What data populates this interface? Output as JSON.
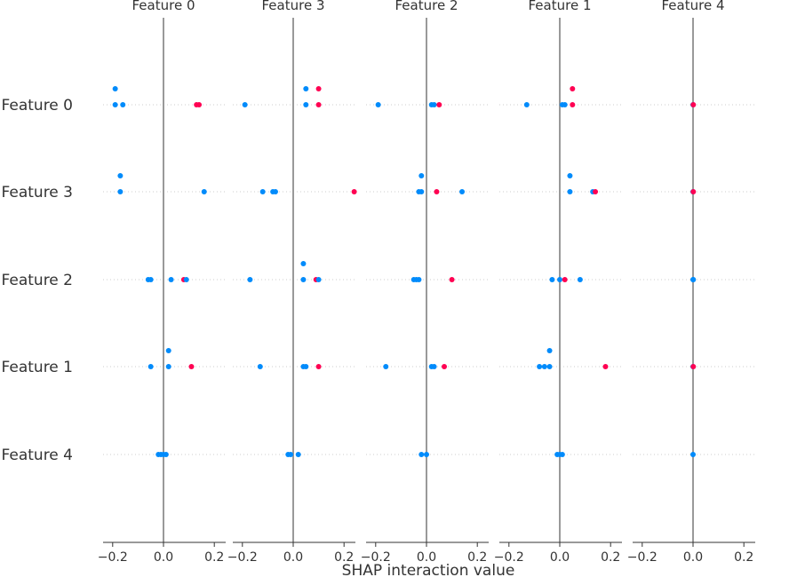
{
  "chart_data": {
    "type": "scatter",
    "title": "",
    "xlabel": "SHAP interaction value",
    "ylabel": "",
    "xlim": [
      -0.24,
      0.24
    ],
    "x_ticks": [
      "−0.2",
      "0.0",
      "0.2"
    ],
    "panel_titles": [
      "Feature 0",
      "Feature 3",
      "Feature 2",
      "Feature 1",
      "Feature 4"
    ],
    "row_labels": [
      "Feature 0",
      "Feature 3",
      "Feature 2",
      "Feature 1",
      "Feature 4"
    ],
    "color_low": "#008bfb",
    "color_high": "#ff0052",
    "grid": false,
    "panels": [
      {
        "rows": [
          [
            [
              -0.19,
              1,
              0
            ],
            [
              -0.19,
              0,
              0
            ],
            [
              -0.16,
              0,
              0
            ],
            [
              0.13,
              0,
              1
            ],
            [
              0.14,
              0,
              1
            ]
          ],
          [
            [
              -0.17,
              1,
              0
            ],
            [
              -0.17,
              0,
              0
            ],
            [
              0.16,
              0,
              0
            ]
          ],
          [
            [
              -0.06,
              0,
              0
            ],
            [
              -0.05,
              0,
              0
            ],
            [
              0.03,
              0,
              0
            ],
            [
              0.08,
              0,
              1
            ],
            [
              0.09,
              0,
              0
            ]
          ],
          [
            [
              0.02,
              1,
              0
            ],
            [
              -0.05,
              0,
              0
            ],
            [
              0.02,
              0,
              0
            ],
            [
              0.11,
              0,
              1
            ]
          ],
          [
            [
              -0.02,
              0,
              0
            ],
            [
              -0.01,
              0,
              0
            ],
            [
              0.0,
              0,
              0
            ],
            [
              0.01,
              0,
              0
            ]
          ]
        ]
      },
      {
        "rows": [
          [
            [
              0.05,
              1,
              0
            ],
            [
              0.1,
              1,
              1
            ],
            [
              -0.19,
              0,
              0
            ],
            [
              0.05,
              0,
              0
            ],
            [
              0.1,
              0,
              1
            ]
          ],
          [
            [
              -0.12,
              0,
              0
            ],
            [
              -0.08,
              0,
              0
            ],
            [
              -0.07,
              0,
              0
            ],
            [
              0.24,
              0,
              1
            ]
          ],
          [
            [
              0.04,
              1,
              0
            ],
            [
              -0.17,
              0,
              0
            ],
            [
              0.04,
              0,
              0
            ],
            [
              0.09,
              0,
              1
            ],
            [
              0.1,
              0,
              0
            ]
          ],
          [
            [
              -0.13,
              0,
              0
            ],
            [
              0.04,
              0,
              0
            ],
            [
              0.05,
              0,
              0
            ],
            [
              0.1,
              0,
              1
            ]
          ],
          [
            [
              -0.02,
              0,
              0
            ],
            [
              -0.01,
              0,
              0
            ],
            [
              0.02,
              0,
              0
            ]
          ]
        ]
      },
      {
        "rows": [
          [
            [
              -0.19,
              0,
              0
            ],
            [
              0.02,
              0,
              0
            ],
            [
              0.03,
              0,
              0
            ],
            [
              0.05,
              0,
              1
            ]
          ],
          [
            [
              -0.02,
              1,
              0
            ],
            [
              -0.03,
              0,
              0
            ],
            [
              -0.02,
              0,
              0
            ],
            [
              0.04,
              0,
              1
            ],
            [
              0.14,
              0,
              0
            ]
          ],
          [
            [
              -0.05,
              0,
              0
            ],
            [
              -0.04,
              0,
              0
            ],
            [
              -0.03,
              0,
              0
            ],
            [
              0.1,
              0,
              1
            ]
          ],
          [
            [
              -0.16,
              0,
              0
            ],
            [
              0.02,
              0,
              0
            ],
            [
              0.03,
              0,
              0
            ],
            [
              0.07,
              0,
              1
            ]
          ],
          [
            [
              -0.02,
              0,
              0
            ],
            [
              0.0,
              0,
              0
            ]
          ]
        ]
      },
      {
        "rows": [
          [
            [
              0.05,
              1,
              1
            ],
            [
              -0.13,
              0,
              0
            ],
            [
              0.01,
              0,
              0
            ],
            [
              0.02,
              0,
              0
            ],
            [
              0.05,
              0,
              1
            ]
          ],
          [
            [
              0.04,
              1,
              0
            ],
            [
              0.04,
              0,
              0
            ],
            [
              0.13,
              0,
              0
            ],
            [
              0.14,
              0,
              1
            ]
          ],
          [
            [
              -0.03,
              0,
              0
            ],
            [
              0.0,
              0,
              0
            ],
            [
              0.02,
              0,
              1
            ],
            [
              0.08,
              0,
              0
            ]
          ],
          [
            [
              -0.04,
              1,
              0
            ],
            [
              -0.08,
              0,
              0
            ],
            [
              -0.06,
              0,
              0
            ],
            [
              -0.04,
              0,
              0
            ],
            [
              0.18,
              0,
              1
            ]
          ],
          [
            [
              -0.01,
              0,
              0
            ],
            [
              0.0,
              0,
              0
            ],
            [
              0.01,
              0,
              0
            ]
          ]
        ]
      },
      {
        "rows": [
          [
            [
              0.0,
              0,
              0
            ],
            [
              0.001,
              0,
              1
            ]
          ],
          [
            [
              0.0,
              0,
              0
            ],
            [
              0.001,
              0,
              1
            ]
          ],
          [
            [
              0.0,
              0,
              0
            ],
            [
              0.001,
              0,
              0
            ]
          ],
          [
            [
              0.0,
              0,
              0
            ],
            [
              0.001,
              0,
              1
            ]
          ],
          [
            [
              0.0,
              0,
              0
            ]
          ]
        ]
      }
    ]
  }
}
